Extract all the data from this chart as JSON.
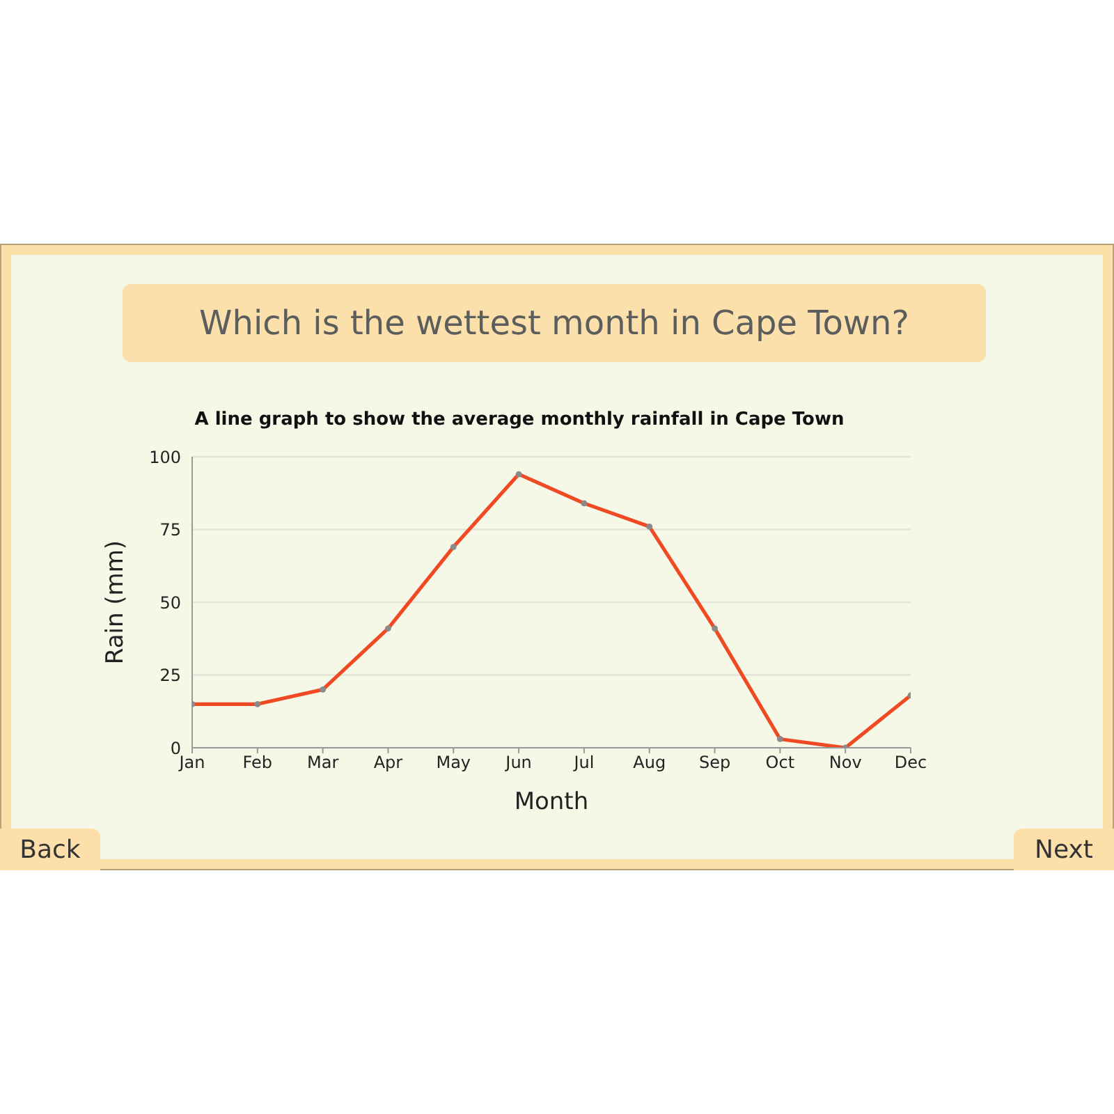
{
  "chart_data": {
    "type": "line",
    "title": "Which is the wettest month in Cape Town?",
    "subtitle": "A line graph to show the average monthly rainfall in Cape Town",
    "xlabel": "Month",
    "ylabel": "Rain (mm)",
    "categories": [
      "Jan",
      "Feb",
      "Mar",
      "Apr",
      "May",
      "Jun",
      "Jul",
      "Aug",
      "Sep",
      "Oct",
      "Nov",
      "Dec"
    ],
    "values": [
      15,
      15,
      20,
      41,
      69,
      94,
      84,
      76,
      41,
      3,
      0,
      18
    ],
    "color": "#ef4a24",
    "ylim": [
      0,
      100
    ],
    "yticks": [
      0,
      25,
      50,
      75,
      100
    ],
    "grid": "y",
    "marker": "circle",
    "line_style": "solid",
    "annotations": [
      "Back",
      "Next"
    ]
  }
}
